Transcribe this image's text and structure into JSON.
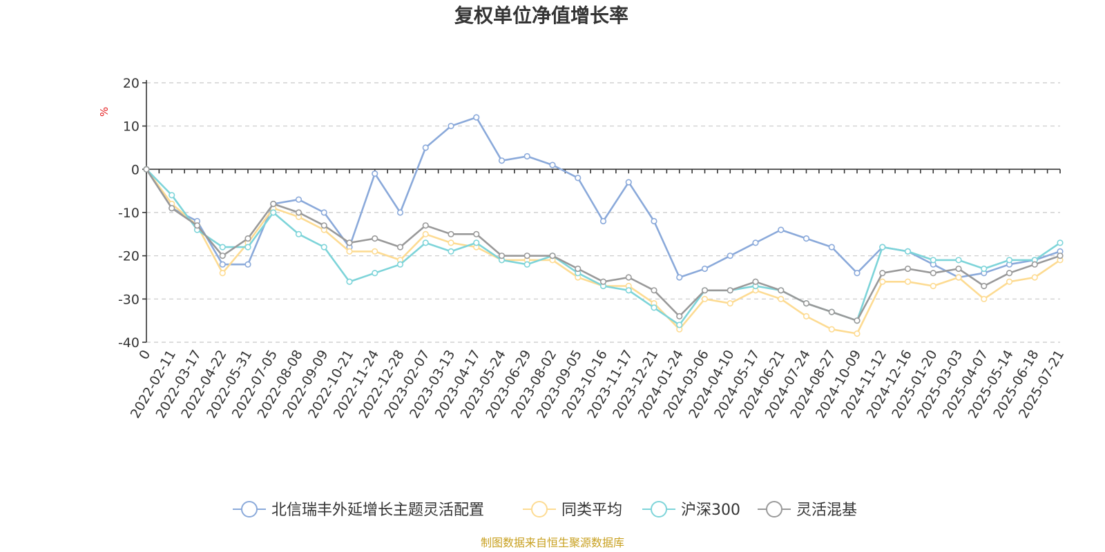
{
  "chart_data": {
    "type": "line",
    "title": "复权单位净值增长率",
    "ylabel": "%",
    "ylim": [
      -40,
      20
    ],
    "yticks": [
      20,
      10,
      0,
      -10,
      -20,
      -30,
      -40
    ],
    "grid": true,
    "legend_position": "bottom",
    "categories": [
      "0",
      "2022-02-11",
      "2022-03-17",
      "2022-04-22",
      "2022-05-31",
      "2022-07-05",
      "2022-08-08",
      "2022-09-09",
      "2022-10-21",
      "2022-11-24",
      "2022-12-28",
      "2023-02-07",
      "2023-03-13",
      "2023-04-17",
      "2023-05-24",
      "2023-06-29",
      "2023-08-02",
      "2023-09-05",
      "2023-10-16",
      "2023-11-17",
      "2023-12-21",
      "2024-01-24",
      "2024-03-06",
      "2024-04-10",
      "2024-05-17",
      "2024-06-21",
      "2024-07-24",
      "2024-08-27",
      "2024-10-09",
      "2024-11-12",
      "2024-12-16",
      "2025-01-20",
      "2025-03-03",
      "2025-04-07",
      "2025-05-14",
      "2025-06-18",
      "2025-07-21"
    ],
    "series": [
      {
        "name": "北信瑞丰外延增长主题灵活配置",
        "color": "#8aa9da",
        "values": [
          0,
          -9,
          -12,
          -22,
          -22,
          -8,
          -7,
          -10,
          -18,
          -1,
          -10,
          5,
          10,
          12,
          2,
          3,
          1,
          -2,
          -12,
          -3,
          -12,
          -25,
          -23,
          -20,
          -17,
          -14,
          -16,
          -18,
          -24,
          -18,
          -19,
          -22,
          -25,
          -24,
          -22,
          -21,
          -19
        ]
      },
      {
        "name": "同类平均",
        "color": "#fddb92",
        "values": [
          0,
          -8,
          -13,
          -24,
          -17,
          -9,
          -11,
          -14,
          -19,
          -19,
          -21,
          -15,
          -17,
          -18,
          -21,
          -21,
          -21,
          -25,
          -27,
          -27,
          -31,
          -37,
          -30,
          -31,
          -28,
          -30,
          -34,
          -37,
          -38,
          -26,
          -26,
          -27,
          -25,
          -30,
          -26,
          -25,
          -21
        ]
      },
      {
        "name": "沪深300",
        "color": "#7dd4d9",
        "values": [
          0,
          -6,
          -14,
          -18,
          -18,
          -10,
          -15,
          -18,
          -26,
          -24,
          -22,
          -17,
          -19,
          -17,
          -21,
          -22,
          -20,
          -24,
          -27,
          -28,
          -32,
          -36,
          -28,
          -28,
          -27,
          -28,
          -31,
          -33,
          -35,
          -18,
          -19,
          -21,
          -21,
          -23,
          -21,
          -21,
          -17
        ]
      },
      {
        "name": "灵活混基",
        "color": "#999999",
        "values": [
          0,
          -9,
          -13,
          -20,
          -16,
          -8,
          -10,
          -13,
          -17,
          -16,
          -18,
          -13,
          -15,
          -15,
          -20,
          -20,
          -20,
          -23,
          -26,
          -25,
          -28,
          -34,
          -28,
          -28,
          -26,
          -28,
          -31,
          -33,
          -35,
          -24,
          -23,
          -24,
          -23,
          -27,
          -24,
          -22,
          -20
        ]
      }
    ],
    "source": "制图数据来自恒生聚源数据库"
  }
}
